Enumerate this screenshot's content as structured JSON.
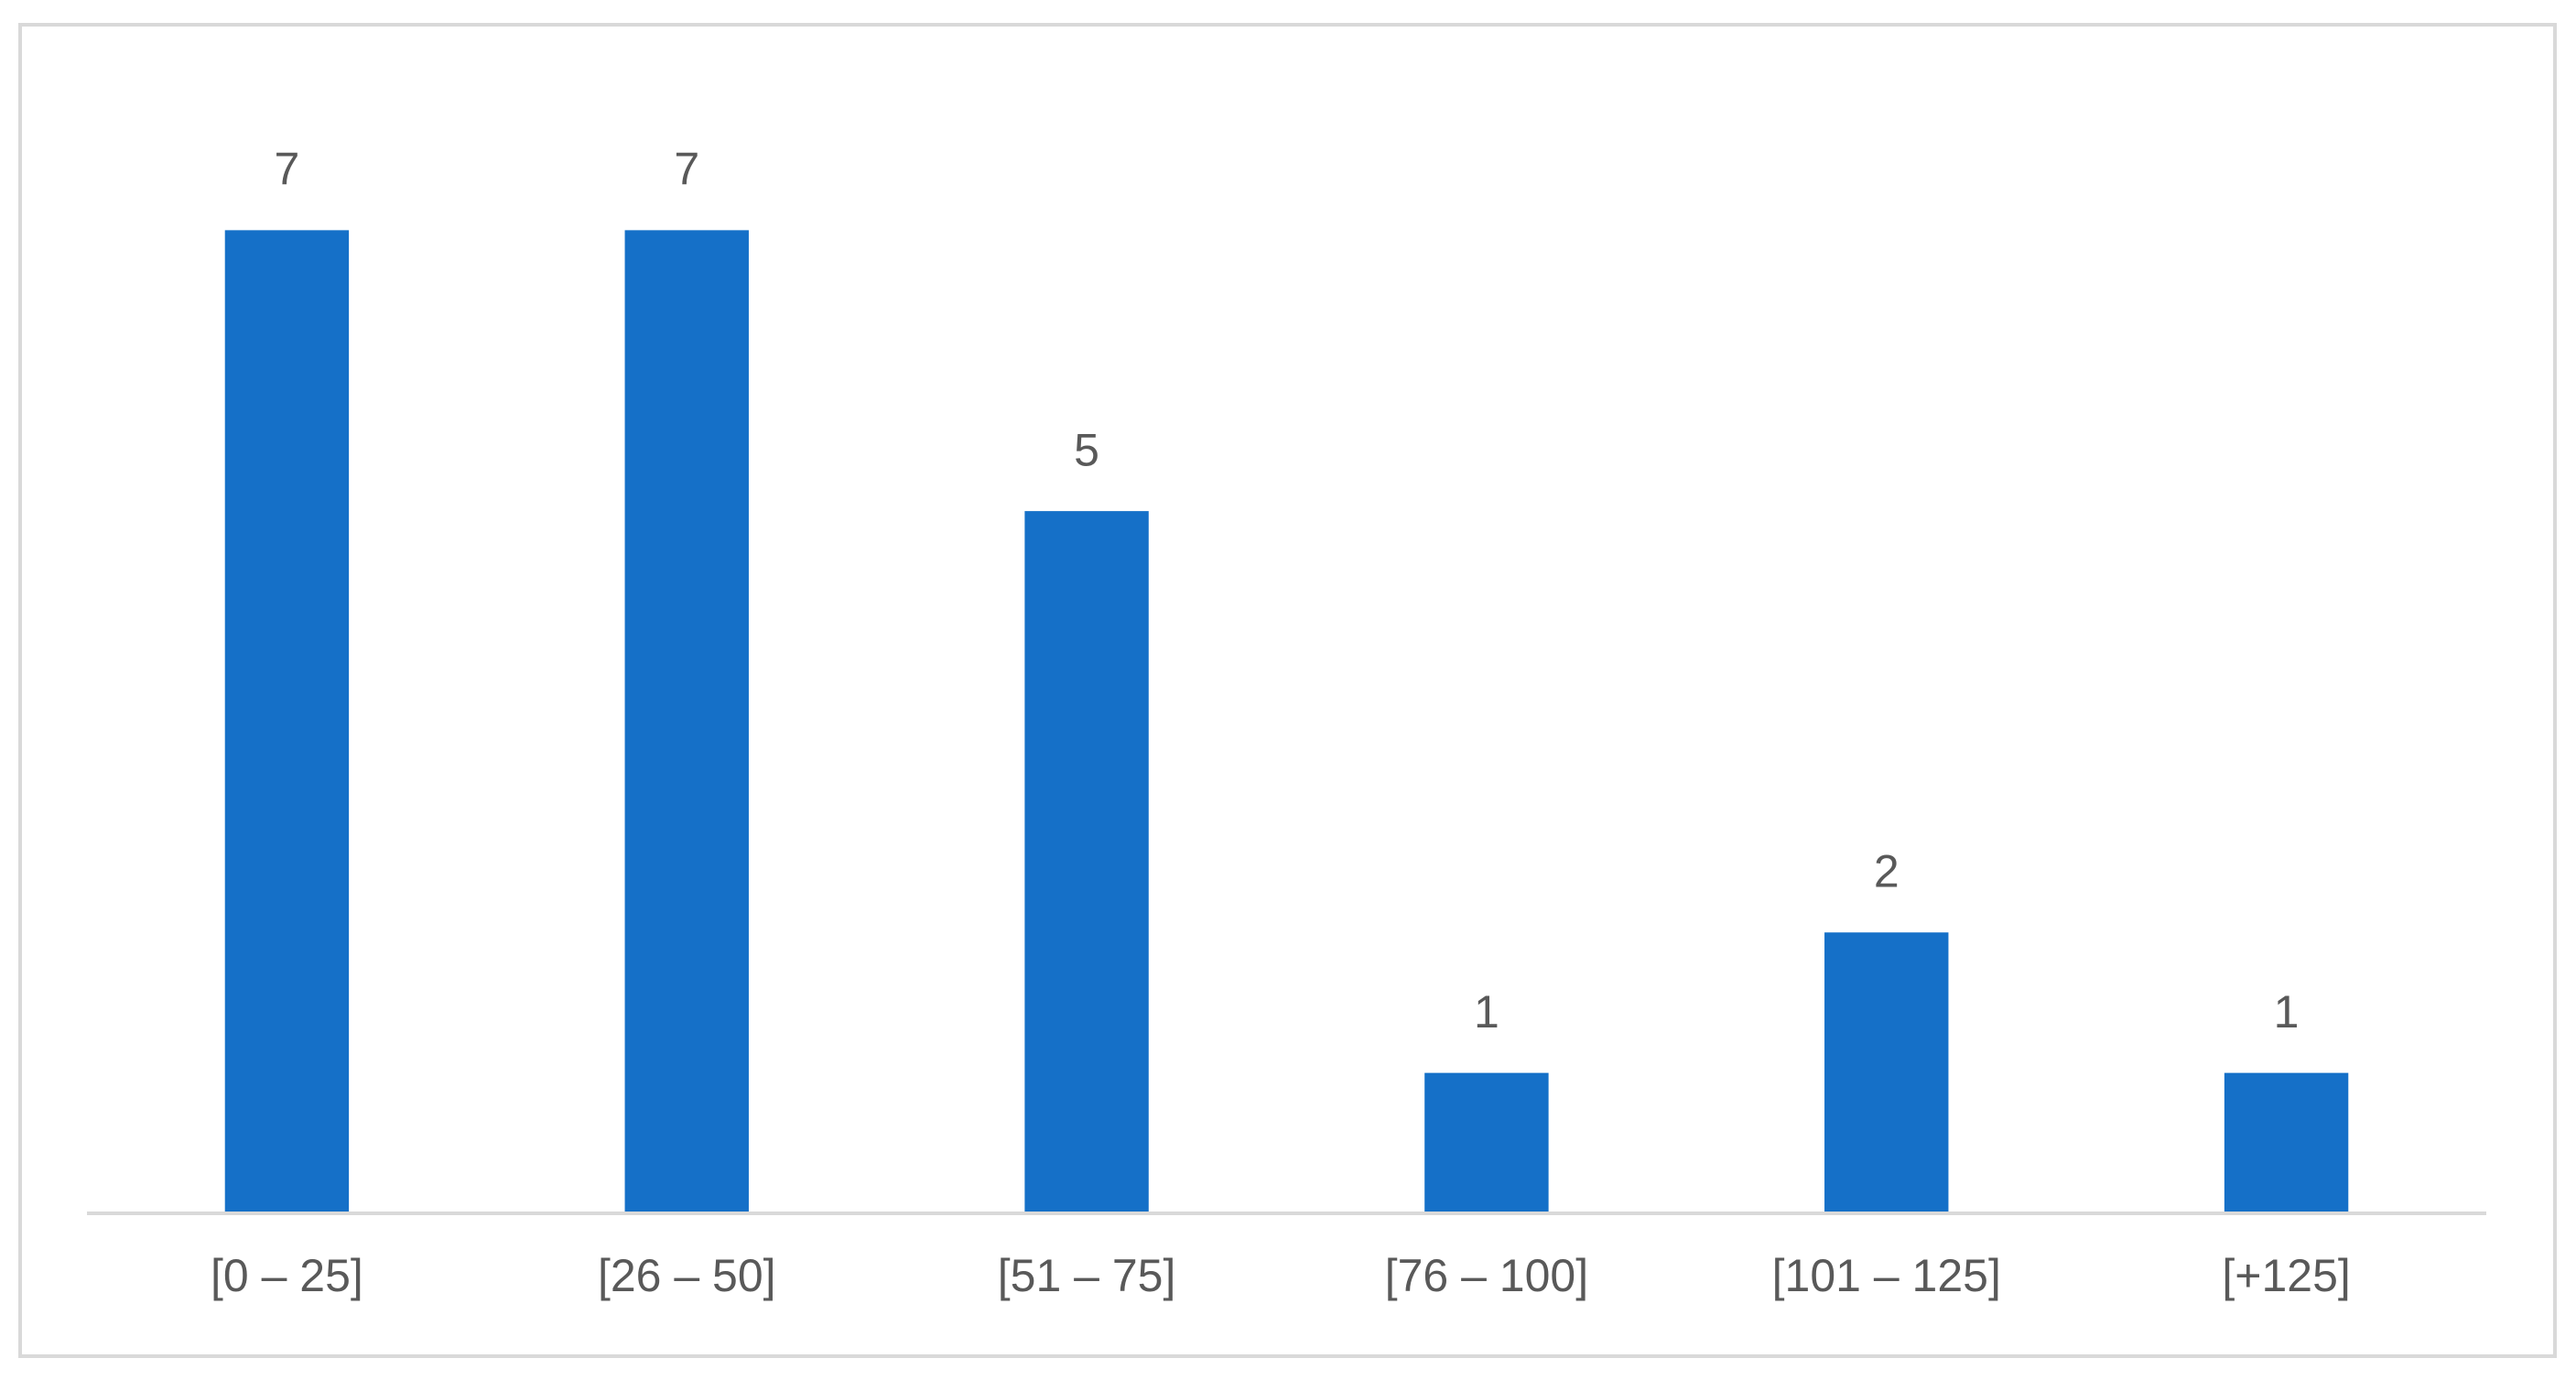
{
  "chart_data": {
    "type": "bar",
    "categories": [
      "[0 – 25]",
      "[26 – 50]",
      "[51 – 75]",
      "[76 – 100]",
      "[101 – 125]",
      "[+125]"
    ],
    "values": [
      7,
      7,
      5,
      1,
      2,
      1
    ],
    "color": "#1570c8",
    "ylim": [
      0,
      8
    ]
  }
}
